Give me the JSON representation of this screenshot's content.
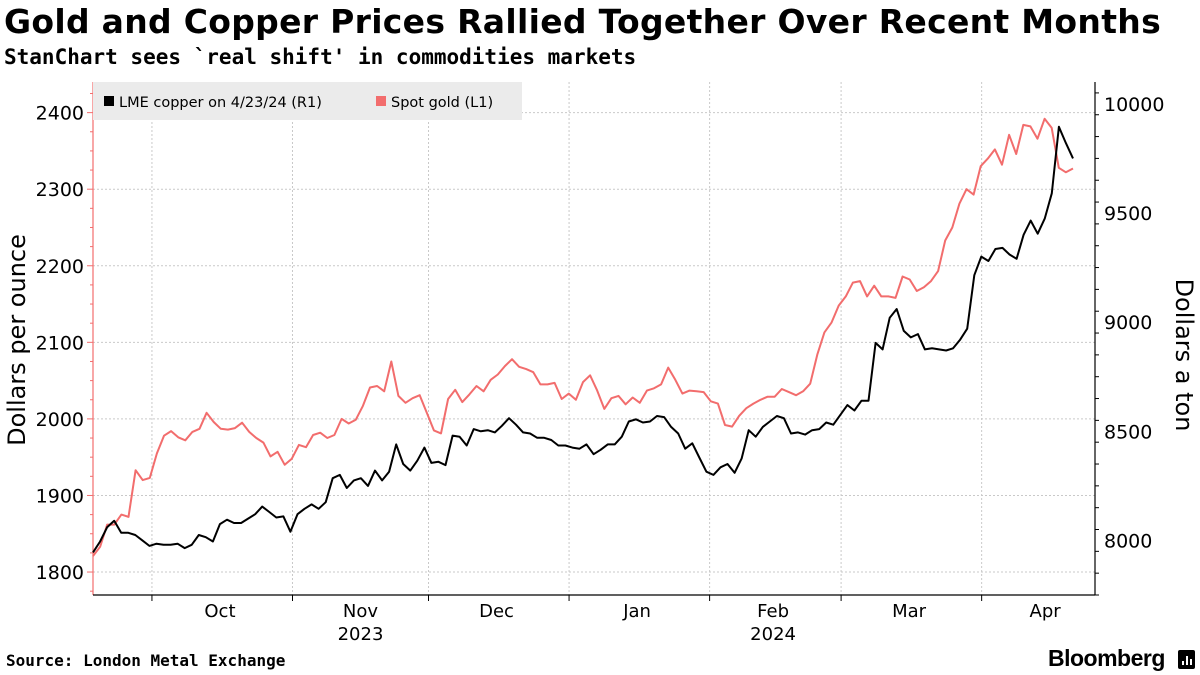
{
  "title": "Gold and Copper Prices Rallied Together Over Recent Months",
  "subtitle": "StanChart sees `real shift' in commodities markets",
  "source": "Source: London Metal Exchange",
  "brand": "Bloomberg",
  "chart_data": {
    "type": "line",
    "x_axis": {
      "month_labels": [
        "Oct",
        "Nov",
        "Dec",
        "Jan",
        "Feb",
        "Mar",
        "Apr"
      ],
      "year_labels": [
        "2023",
        "2024"
      ],
      "start": "2023-09-18",
      "end": "2024-04-26"
    },
    "left_axis": {
      "label": "Dollars per ounce",
      "ylim": [
        1770,
        2440
      ],
      "ticks": [
        1800,
        1900,
        2000,
        2100,
        2200,
        2300,
        2400
      ]
    },
    "right_axis": {
      "label": "Dollars a ton",
      "ylim": [
        7750,
        10100
      ],
      "ticks": [
        8000,
        8500,
        9000,
        9500,
        10000
      ]
    },
    "legend": {
      "placement": "top-left"
    },
    "grid": true,
    "series": [
      {
        "name": "LME copper on 4/23/24 (R1)",
        "axis": "right",
        "color": "#000000",
        "values": [
          7945,
          7995,
          8060,
          8090,
          8035,
          8035,
          8025,
          8000,
          7975,
          7985,
          7980,
          7980,
          7985,
          7965,
          7980,
          8025,
          8015,
          7995,
          8075,
          8095,
          8080,
          8080,
          8100,
          8120,
          8155,
          8130,
          8105,
          8110,
          8040,
          8120,
          8145,
          8165,
          8145,
          8175,
          8285,
          8300,
          8240,
          8275,
          8285,
          8250,
          8320,
          8275,
          8315,
          8440,
          8350,
          8320,
          8365,
          8425,
          8355,
          8360,
          8345,
          8480,
          8475,
          8435,
          8510,
          8500,
          8505,
          8495,
          8525,
          8560,
          8530,
          8495,
          8490,
          8470,
          8470,
          8460,
          8435,
          8435,
          8425,
          8420,
          8440,
          8395,
          8415,
          8440,
          8440,
          8475,
          8545,
          8555,
          8540,
          8545,
          8570,
          8565,
          8520,
          8490,
          8420,
          8445,
          8380,
          8315,
          8300,
          8335,
          8350,
          8310,
          8375,
          8505,
          8475,
          8520,
          8545,
          8570,
          8560,
          8490,
          8495,
          8485,
          8505,
          8510,
          8540,
          8530,
          8575,
          8620,
          8595,
          8640,
          8640,
          8905,
          8875,
          9020,
          9060,
          8960,
          8930,
          8945,
          8875,
          8880,
          8875,
          8870,
          8880,
          8920,
          8970,
          9215,
          9300,
          9280,
          9335,
          9340,
          9310,
          9290,
          9400,
          9465,
          9405,
          9475,
          9590,
          9895,
          9820,
          9750
        ]
      },
      {
        "name": "Spot gold (L1)",
        "axis": "left",
        "color": "#f26d6d",
        "values": [
          1821,
          1833,
          1862,
          1862,
          1875,
          1872,
          1933,
          1920,
          1923,
          1955,
          1978,
          1984,
          1976,
          1972,
          1983,
          1987,
          2008,
          1996,
          1987,
          1986,
          1988,
          1995,
          1983,
          1975,
          1969,
          1951,
          1957,
          1940,
          1948,
          1966,
          1963,
          1979,
          1982,
          1975,
          1979,
          2000,
          1994,
          1999,
          2017,
          2041,
          2043,
          2036,
          2075,
          2030,
          2021,
          2027,
          2031,
          2008,
          1985,
          1981,
          2026,
          2038,
          2022,
          2032,
          2043,
          2036,
          2051,
          2058,
          2069,
          2078,
          2068,
          2065,
          2061,
          2045,
          2045,
          2047,
          2026,
          2033,
          2025,
          2048,
          2057,
          2037,
          2013,
          2027,
          2030,
          2019,
          2028,
          2021,
          2037,
          2040,
          2045,
          2067,
          2051,
          2033,
          2037,
          2036,
          2035,
          2023,
          2020,
          1992,
          1990,
          2004,
          2014,
          2020,
          2025,
          2029,
          2029,
          2039,
          2035,
          2031,
          2036,
          2046,
          2084,
          2113,
          2126,
          2148,
          2160,
          2178,
          2180,
          2160,
          2174,
          2160,
          2160,
          2158,
          2186,
          2182,
          2167,
          2172,
          2180,
          2193,
          2233,
          2250,
          2281,
          2300,
          2293,
          2330,
          2340,
          2352,
          2332,
          2371,
          2346,
          2384,
          2382,
          2366,
          2392,
          2380,
          2328,
          2322,
          2327
        ]
      }
    ]
  }
}
